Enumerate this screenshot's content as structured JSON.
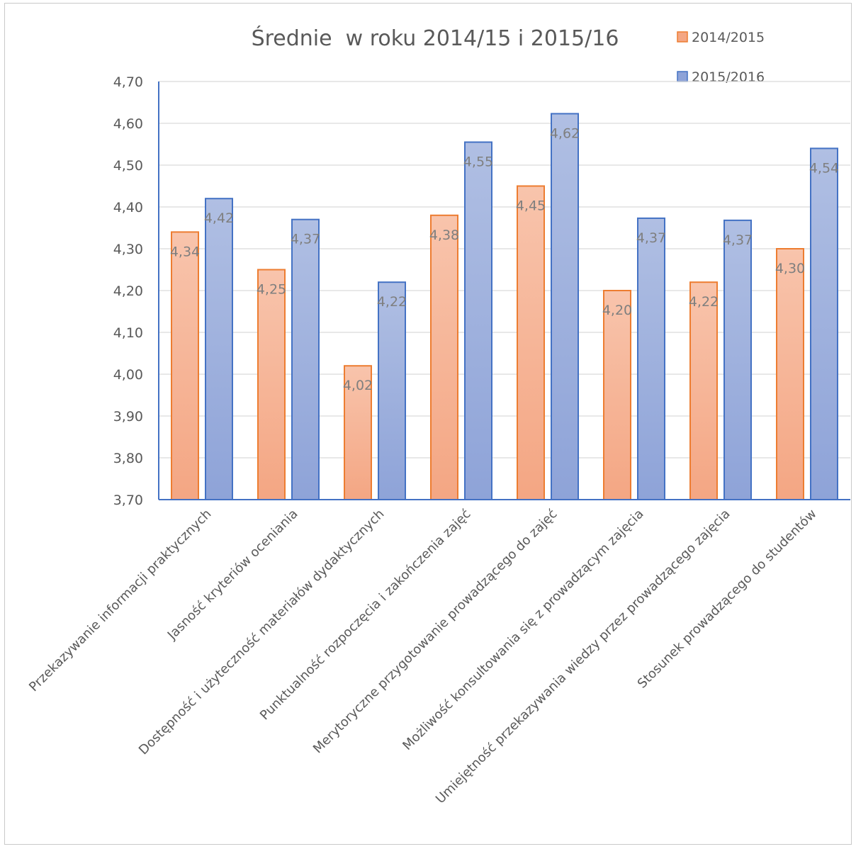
{
  "chart_data": {
    "type": "bar",
    "title": "Średnie  w roku 2014/15 i 2015/16",
    "xlabel": "",
    "ylabel": "",
    "ylim": [
      3.7,
      4.7
    ],
    "yticks": [
      "4,70",
      "4,60",
      "4,50",
      "4,40",
      "4,30",
      "4,20",
      "4,10",
      "4,00",
      "3,90",
      "3,80",
      "3,70"
    ],
    "grid": true,
    "legend_position": "top-right",
    "categories": [
      "Przekazywanie informacji praktycznych",
      "Jasność kryteriów oceniania",
      "Dostępność i użyteczność materiałów dydaktycznych",
      "Punktualność rozpoczęcia i zakończenia zajęć",
      "Merytoryczne przygotowanie prowadzącego do zajęć",
      "Możliwość konsultowania się z prowadzącym zajęcia",
      "Umiejętność przekazywania wiedzy przez prowadzącego zajęcia",
      "Stosunek prowadzącego do studentów"
    ],
    "series": [
      {
        "name": "2014/2015",
        "values": [
          4.34,
          4.25,
          4.02,
          4.38,
          4.45,
          4.2,
          4.22,
          4.3
        ],
        "labels": [
          "4,34",
          "4,25",
          "4,02",
          "4,38",
          "4,45",
          "4,20",
          "4,22",
          "4,30"
        ],
        "fill_top": "#f8c4ac",
        "fill_bottom": "#f4a683",
        "stroke": "#ed7d31"
      },
      {
        "name": "2015/2016",
        "values": [
          4.42,
          4.37,
          4.22,
          4.555,
          4.623,
          4.373,
          4.368,
          4.54
        ],
        "labels": [
          "4,42",
          "4,37",
          "4,22",
          "4,55",
          "4,62",
          "4,37",
          "4,37",
          "4,54"
        ],
        "fill_top": "#b0bfe3",
        "fill_bottom": "#8ea3d8",
        "stroke": "#4472c4"
      }
    ],
    "colors": {
      "axis": "#4472c4",
      "grid": "#d9d9d9",
      "text": "#595959"
    }
  }
}
